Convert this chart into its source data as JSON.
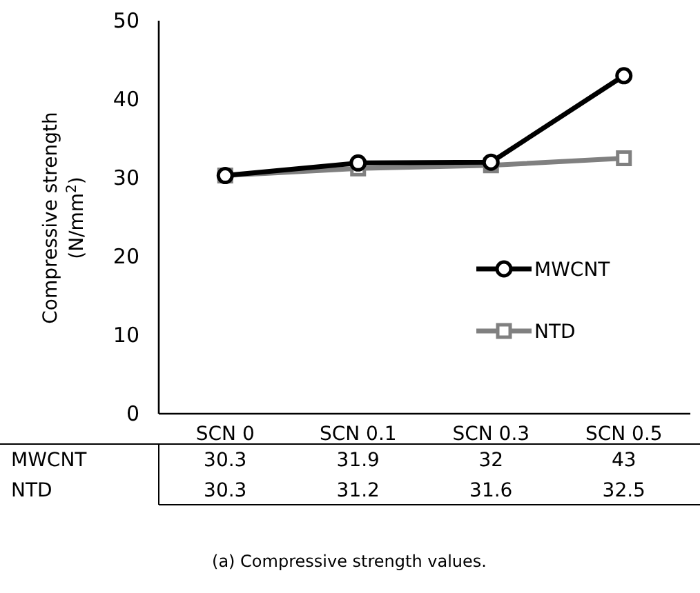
{
  "chart_data": {
    "type": "line",
    "ylabel": "Compressive strength (N/mm$^{2}$)",
    "categories": [
      "SCN 0",
      "SCN 0.1",
      "SCN 0.3",
      "SCN 0.5"
    ],
    "series": [
      {
        "name": "MWCNT",
        "color": "#000000",
        "marker": "circle",
        "values": [
          30.3,
          31.9,
          32,
          43
        ]
      },
      {
        "name": "NTD",
        "color": "#808080",
        "marker": "square",
        "values": [
          30.3,
          31.2,
          31.6,
          32.5
        ]
      }
    ],
    "ylim": [
      0,
      50
    ],
    "yticks": [
      0,
      10,
      20,
      30,
      40,
      50
    ],
    "grid": false,
    "legend": "right",
    "data_labels": true,
    "annotations": [
      "(a)  Compressive strength values."
    ]
  }
}
